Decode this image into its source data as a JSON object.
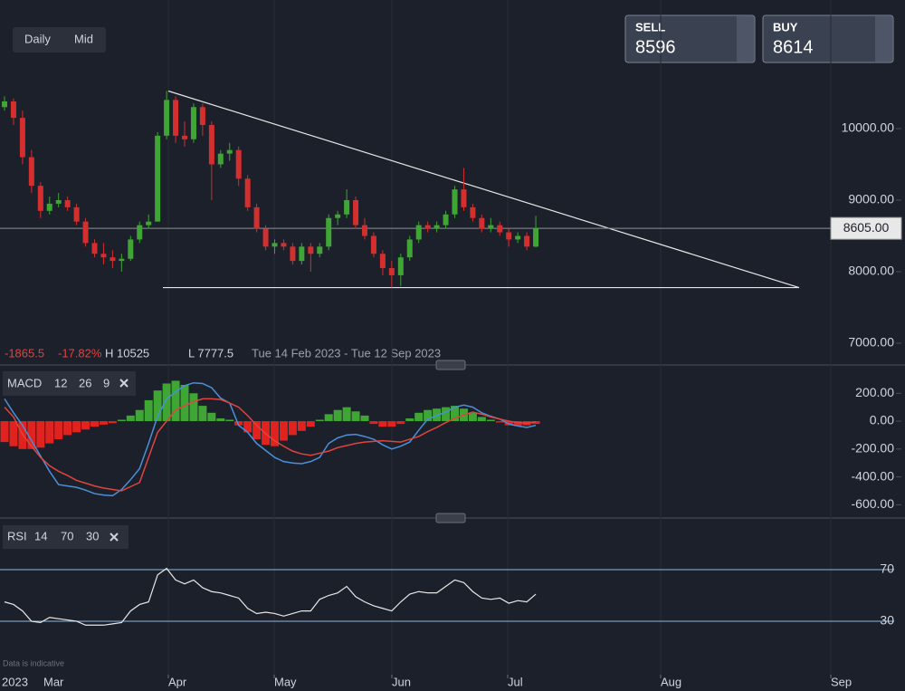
{
  "ui": {
    "timeframes": [
      "Daily",
      "Mid"
    ],
    "sell_label": "SELL",
    "sell": 8596,
    "buy_label": "BUY",
    "buy": 8614,
    "change": -1865.5,
    "change_pct": "-17.82%",
    "high": "H 10525",
    "low": "L 7777.5",
    "range": "Tue 14 Feb 2023 - Tue 12 Sep 2023",
    "note": "Data is indicative"
  },
  "chart_data": [
    {
      "type": "candlestick",
      "ylim": [
        6734,
        11797
      ],
      "yticks": [
        {
          "value": 10000,
          "label": "10000.00"
        },
        {
          "value": 9000,
          "label": "9000.00"
        },
        {
          "value": 8000,
          "label": "8000.00"
        },
        {
          "value": 7000,
          "label": "7000.00"
        }
      ],
      "current_price": {
        "value": 8605,
        "label": "8605.00"
      },
      "trendline": [
        10525,
        7777.5
      ],
      "support": 7777.5,
      "up_color": "#3fa535",
      "down_color": "#d32f2f",
      "candles": [
        [
          10300,
          10450,
          10250,
          10380
        ],
        [
          10380,
          10420,
          10050,
          10150
        ],
        [
          10150,
          10250,
          9500,
          9600
        ],
        [
          9600,
          9700,
          9100,
          9200
        ],
        [
          9200,
          9250,
          8750,
          8850
        ],
        [
          8850,
          9050,
          8800,
          8950
        ],
        [
          8950,
          9100,
          8900,
          9000
        ],
        [
          9000,
          9050,
          8850,
          8900
        ],
        [
          8900,
          8950,
          8650,
          8700
        ],
        [
          8700,
          8750,
          8350,
          8400
        ],
        [
          8400,
          8450,
          8200,
          8250
        ],
        [
          8250,
          8400,
          8100,
          8200
        ],
        [
          8200,
          8300,
          8050,
          8150
        ],
        [
          8150,
          8250,
          8000,
          8180
        ],
        [
          8180,
          8500,
          8150,
          8450
        ],
        [
          8450,
          8700,
          8400,
          8650
        ],
        [
          8650,
          8800,
          8600,
          8700
        ],
        [
          8700,
          9950,
          8700,
          9900
        ],
        [
          9900,
          10525,
          9850,
          10400
        ],
        [
          10400,
          10450,
          9800,
          9900
        ],
        [
          9900,
          10100,
          9750,
          9850
        ],
        [
          9850,
          10350,
          9800,
          10300
        ],
        [
          10300,
          10350,
          9900,
          10050
        ],
        [
          10050,
          10100,
          9000,
          9500
        ],
        [
          9500,
          9700,
          9450,
          9650
        ],
        [
          9650,
          9800,
          9550,
          9700
        ],
        [
          9700,
          9750,
          9200,
          9300
        ],
        [
          9300,
          9350,
          8850,
          8900
        ],
        [
          8900,
          8950,
          8550,
          8600
        ],
        [
          8600,
          8650,
          8300,
          8350
        ],
        [
          8350,
          8450,
          8250,
          8400
        ],
        [
          8400,
          8450,
          8300,
          8350
        ],
        [
          8350,
          8400,
          8100,
          8150
        ],
        [
          8150,
          8400,
          8100,
          8350
        ],
        [
          8350,
          8400,
          8000,
          8250
        ],
        [
          8250,
          8400,
          8200,
          8350
        ],
        [
          8350,
          8800,
          8300,
          8750
        ],
        [
          8750,
          8850,
          8650,
          8800
        ],
        [
          8800,
          9150,
          8750,
          9000
        ],
        [
          9000,
          9050,
          8600,
          8650
        ],
        [
          8650,
          8750,
          8450,
          8500
        ],
        [
          8500,
          8550,
          8200,
          8250
        ],
        [
          8250,
          8300,
          7950,
          8050
        ],
        [
          8050,
          8150,
          7777.5,
          7950
        ],
        [
          7950,
          8250,
          7800,
          8200
        ],
        [
          8200,
          8500,
          8150,
          8450
        ],
        [
          8450,
          8700,
          8400,
          8650
        ],
        [
          8650,
          8700,
          8550,
          8600
        ],
        [
          8600,
          8700,
          8550,
          8650
        ],
        [
          8650,
          8850,
          8600,
          8800
        ],
        [
          8800,
          9200,
          8750,
          9150
        ],
        [
          9150,
          9450,
          8850,
          8900
        ],
        [
          8900,
          8950,
          8700,
          8750
        ],
        [
          8750,
          8800,
          8550,
          8600
        ],
        [
          8600,
          8750,
          8550,
          8650
        ],
        [
          8650,
          8700,
          8500,
          8550
        ],
        [
          8550,
          8600,
          8350,
          8450
        ],
        [
          8450,
          8550,
          8400,
          8500
        ],
        [
          8500,
          8550,
          8300,
          8350
        ],
        [
          8350,
          8780,
          8340,
          8605
        ]
      ]
    },
    {
      "type": "macd",
      "name": "MACD",
      "params": [
        12,
        26,
        9
      ],
      "ylim": [
        -682,
        390
      ],
      "yticks": [
        {
          "value": 200,
          "label": "200.00"
        },
        {
          "value": 0,
          "label": "0.00"
        },
        {
          "value": -200,
          "label": "-200.00"
        },
        {
          "value": -400,
          "label": "-400.00"
        },
        {
          "value": -600,
          "label": "-600.00"
        }
      ],
      "series": [
        {
          "color": "#4a90d9",
          "values": [
            160,
            60,
            -30,
            -140,
            -250,
            -360,
            -455,
            -465,
            -475,
            -495,
            -520,
            -530,
            -535,
            -490,
            -420,
            -340,
            -160,
            35,
            160,
            210,
            255,
            275,
            270,
            240,
            165,
            130,
            -30,
            -80,
            -160,
            -210,
            -260,
            -290,
            -300,
            -305,
            -290,
            -260,
            -160,
            -120,
            -100,
            -95,
            -110,
            -130,
            -170,
            -200,
            -180,
            -150,
            -65,
            15,
            40,
            65,
            100,
            115,
            100,
            60,
            35,
            15,
            -20,
            -35,
            -45,
            -30
          ]
        },
        {
          "color": "#e0443e",
          "values": [
            100,
            30,
            -95,
            -180,
            -260,
            -320,
            -360,
            -390,
            -425,
            -445,
            -465,
            -480,
            -490,
            -500,
            -470,
            -440,
            -260,
            -80,
            0,
            80,
            110,
            140,
            160,
            160,
            155,
            130,
            100,
            40,
            -30,
            -90,
            -140,
            -180,
            -215,
            -235,
            -245,
            -230,
            -215,
            -190,
            -175,
            -160,
            -150,
            -145,
            -140,
            -145,
            -150,
            -130,
            -110,
            -75,
            -45,
            -10,
            20,
            45,
            65,
            50,
            30,
            15,
            0,
            -10,
            -15,
            -5
          ]
        }
      ],
      "histogram": [
        -150,
        -180,
        -200,
        -200,
        -190,
        -160,
        -130,
        -100,
        -80,
        -60,
        -40,
        -25,
        -15,
        10,
        40,
        80,
        150,
        220,
        270,
        290,
        260,
        200,
        110,
        60,
        20,
        10,
        -30,
        -80,
        -130,
        -170,
        -180,
        -140,
        -100,
        -70,
        -40,
        10,
        50,
        80,
        100,
        70,
        40,
        -20,
        -40,
        -40,
        -20,
        20,
        60,
        80,
        90,
        100,
        110,
        90,
        60,
        30,
        10,
        -10,
        -30,
        -35,
        -30,
        -20
      ],
      "up_color": "#3fa535",
      "down_color": "#e0231e"
    },
    {
      "type": "rsi",
      "name": "RSI",
      "params": [
        14,
        70,
        30
      ],
      "ylim": [
        -11.4,
        105.8
      ],
      "yticks": [
        70,
        30
      ],
      "color": "#e8e8e8",
      "band_color": "#8fb8e0",
      "values": [
        45,
        43,
        38,
        30,
        29,
        33,
        32,
        31,
        30,
        27,
        27,
        27,
        28,
        29,
        38,
        43,
        45,
        66,
        71,
        62,
        59,
        62,
        56,
        53,
        52,
        50,
        48,
        40,
        36,
        37,
        36,
        34,
        36,
        38,
        38,
        47,
        50,
        52,
        57,
        49,
        45,
        42,
        40,
        38,
        45,
        51,
        53,
        52,
        52,
        57,
        62,
        60,
        53,
        48,
        47,
        48,
        44,
        46,
        45,
        51
      ],
      "x_labels": [
        "2023",
        "Mar",
        "Apr",
        "May",
        "Jun",
        "Jul",
        "Aug",
        "Sep"
      ]
    }
  ]
}
